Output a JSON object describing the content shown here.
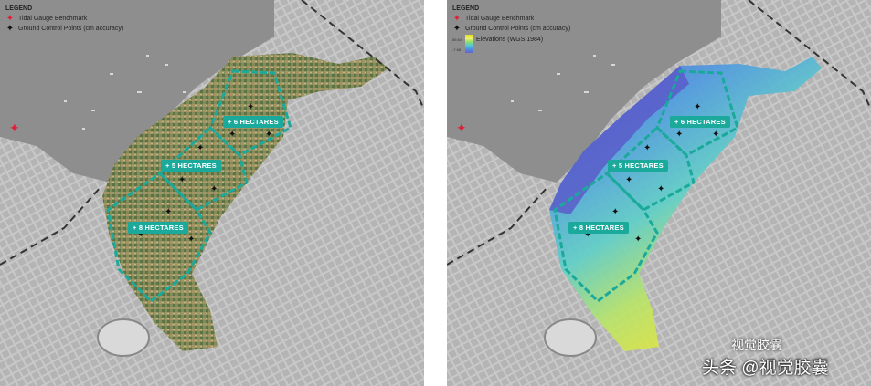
{
  "legend": {
    "title": "LEGEND",
    "tidal_benchmark": "Tidal Gauge Benchmark",
    "gcp": "Ground Control Points (cm accuracy)",
    "elevations": "Elevations (WGS 1984)",
    "ramp_max": "85.64",
    "ramp_min": "-7.68"
  },
  "zones": {
    "zone_a": "+ 6 HECTARES",
    "zone_b": "+ 5 HECTARES",
    "zone_c": "+ 8 HECTARES"
  },
  "colors": {
    "zone_outline": "#1aa99a",
    "tidal_marker": "#e0203a",
    "water": "#8e8e8e",
    "land": "#bdbdbd"
  },
  "icons": {
    "tidal": "red-cross-icon",
    "gcp": "black-star-icon"
  },
  "watermark": {
    "line1": "视觉胶囊",
    "line2": "头条 @视觉胶囊"
  }
}
